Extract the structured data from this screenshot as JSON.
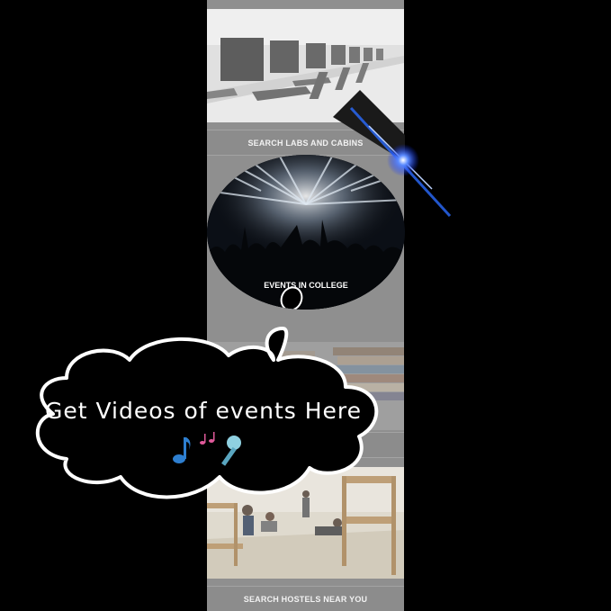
{
  "captions": {
    "labs": "SEARCH LABS AND CABINS",
    "events": "EVENTS IN COLLEGE",
    "hostels": "SEARCH HOSTELS NEAR YOU"
  },
  "callout": {
    "text": "Get Videos of events Here"
  },
  "icons": [
    "music-note-icon",
    "music-notes-icon",
    "microphone-icon"
  ],
  "colors": {
    "background": "#000000",
    "app_gray": "#8f8f8f",
    "light_flare": "#2a6cff"
  }
}
